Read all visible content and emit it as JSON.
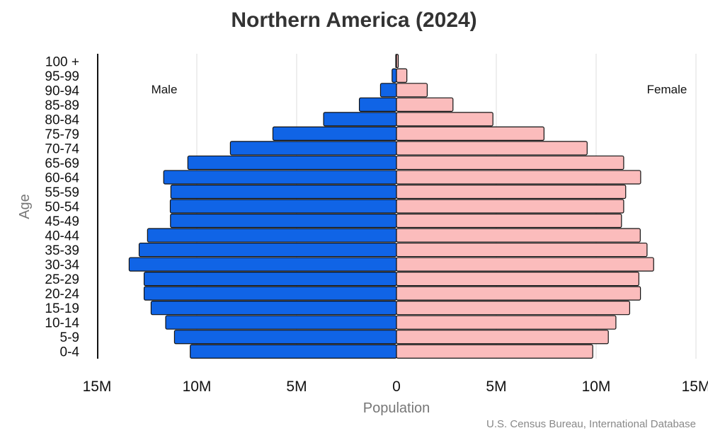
{
  "chart_data": {
    "type": "bar",
    "title": "Northern America (2024)",
    "xlabel": "Population",
    "ylabel": "Age",
    "source": "U.S. Census Bureau, International Database",
    "left_label": "Male",
    "right_label": "Female",
    "x_ticks": [
      {
        "value": -15000000,
        "label": "15M"
      },
      {
        "value": -10000000,
        "label": "10M"
      },
      {
        "value": -5000000,
        "label": "5M"
      },
      {
        "value": 0,
        "label": "0"
      },
      {
        "value": 5000000,
        "label": "5M"
      },
      {
        "value": 10000000,
        "label": "10M"
      },
      {
        "value": 15000000,
        "label": "15M"
      }
    ],
    "xlim": [
      -15000000,
      15000000
    ],
    "grid": true,
    "categories": [
      "0-4",
      "5-9",
      "10-14",
      "15-19",
      "20-24",
      "25-29",
      "30-34",
      "35-39",
      "40-44",
      "45-49",
      "50-54",
      "55-59",
      "60-64",
      "65-69",
      "70-74",
      "75-79",
      "80-84",
      "85-89",
      "90-94",
      "95-99",
      "100 +"
    ],
    "series": [
      {
        "name": "Male",
        "color": "#1064e6",
        "values": [
          10330000,
          11120000,
          11560000,
          12290000,
          12640000,
          12640000,
          13390000,
          12890000,
          12470000,
          11320000,
          11330000,
          11300000,
          11660000,
          10450000,
          8320000,
          6190000,
          3650000,
          1860000,
          800000,
          220000,
          35000
        ]
      },
      {
        "name": "Female",
        "color": "#fbbcbc",
        "values": [
          9830000,
          10610000,
          10990000,
          11680000,
          12220000,
          12140000,
          12880000,
          12550000,
          12210000,
          11270000,
          11380000,
          11480000,
          12230000,
          11380000,
          9550000,
          7390000,
          4830000,
          2830000,
          1540000,
          520000,
          90000
        ]
      }
    ]
  }
}
